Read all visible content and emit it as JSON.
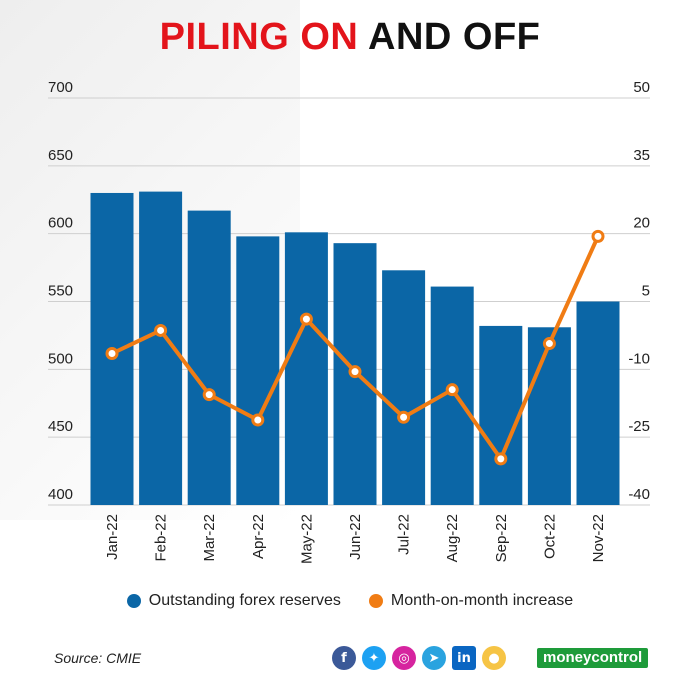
{
  "title": {
    "part1": "PILING ON",
    "part2": "AND OFF"
  },
  "chart_data": {
    "type": "bar+line",
    "categories": [
      "Jan-22",
      "Feb-22",
      "Mar-22",
      "Apr-22",
      "May-22",
      "Jun-22",
      "Jul-22",
      "Aug-22",
      "Sep-22",
      "Oct-22",
      "Nov-22"
    ],
    "series": [
      {
        "name": "Outstanding forex reserves",
        "type": "bar",
        "axis": "left",
        "color": "#0b66a6",
        "values": [
          630,
          631,
          617,
          598,
          601,
          593,
          573,
          561,
          532,
          531,
          550
        ]
      },
      {
        "name": "Month-on-month increase",
        "type": "line",
        "axis": "right",
        "color": "#f07c14",
        "values": [
          -6.5,
          -1.4,
          -15.6,
          -21.2,
          1.1,
          -10.5,
          -20.6,
          -14.5,
          -29.8,
          -4.3,
          19.4
        ]
      }
    ],
    "left_axis": {
      "min": 400,
      "max": 700,
      "ticks": [
        400,
        450,
        500,
        550,
        600,
        650,
        700
      ]
    },
    "right_axis": {
      "min": -40,
      "max": 50,
      "ticks": [
        -40,
        -25,
        -10,
        5,
        20,
        35,
        50
      ]
    },
    "grid": true,
    "legend": "bottom-center"
  },
  "legend": {
    "items": [
      "Outstanding forex reserves",
      "Month-on-month increase"
    ]
  },
  "source": "Source: CMIE",
  "brand": {
    "logo_text": "moneycontrol"
  },
  "social_icons": [
    "facebook-icon",
    "twitter-icon",
    "instagram-icon",
    "telegram-icon",
    "linkedin-icon",
    "koo-icon"
  ]
}
